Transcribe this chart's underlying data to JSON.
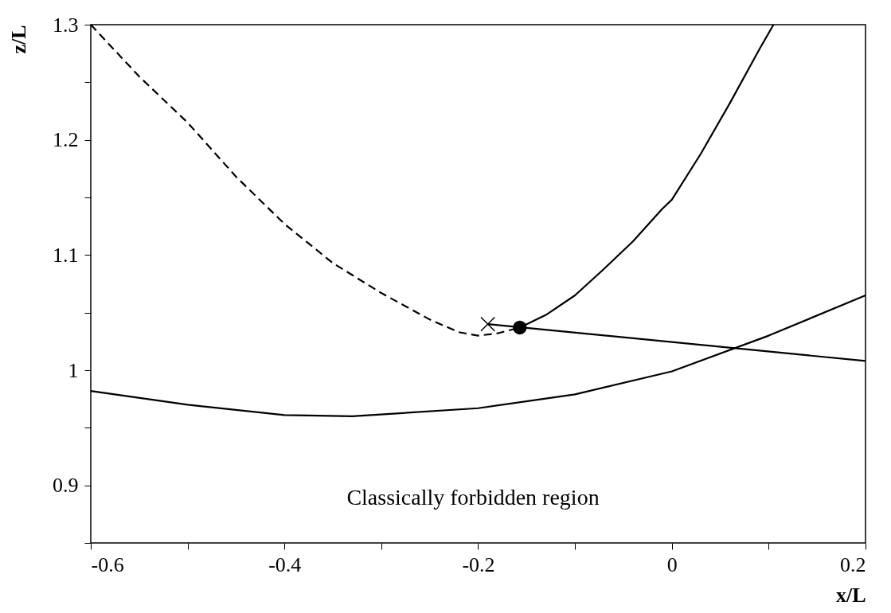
{
  "chart_data": {
    "type": "line",
    "xlabel": "x/L",
    "ylabel": "z/L",
    "xlim": [
      -0.6,
      0.2
    ],
    "ylim": [
      0.85,
      1.3
    ],
    "xticks": [
      -0.6,
      {
        "value": -0.5,
        "label": null
      },
      -0.4,
      {
        "value": -0.3,
        "label": null
      },
      -0.2,
      {
        "value": -0.1,
        "label": null
      },
      0,
      {
        "value": 0.1,
        "label": null
      },
      0.2
    ],
    "yticks": [
      {
        "value": 0.85,
        "label": null
      },
      0.9,
      {
        "value": 0.95,
        "label": null
      },
      1,
      {
        "value": 1.05,
        "label": null
      },
      1.1,
      {
        "value": 1.15,
        "label": null
      },
      1.2,
      {
        "value": 1.25,
        "label": null
      },
      1.3
    ],
    "grid": false,
    "series": [
      {
        "line_style": "dashed",
        "color": "#000000",
        "x": [
          -0.6,
          -0.55,
          -0.5,
          -0.45,
          -0.4,
          -0.35,
          -0.3,
          -0.25,
          -0.22,
          -0.2,
          -0.18,
          -0.157
        ],
        "values": [
          1.3,
          1.255,
          1.215,
          1.168,
          1.127,
          1.093,
          1.067,
          1.044,
          1.033,
          1.03,
          1.032,
          1.037
        ]
      },
      {
        "line_style": "solid",
        "color": "#000000",
        "x": [
          -0.157,
          -0.13,
          -0.1,
          -0.07,
          -0.04,
          -0.01,
          0.0,
          0.03,
          0.06,
          0.09,
          0.105
        ],
        "values": [
          1.037,
          1.048,
          1.065,
          1.088,
          1.112,
          1.14,
          1.148,
          1.188,
          1.232,
          1.278,
          1.3
        ]
      },
      {
        "line_style": "solid",
        "color": "#000000",
        "x": [
          -0.19,
          0.2
        ],
        "values": [
          1.04,
          1.008
        ]
      },
      {
        "line_style": "solid",
        "color": "#000000",
        "x": [
          -0.6,
          -0.5,
          -0.4,
          -0.33,
          -0.2,
          -0.1,
          0.0,
          0.1,
          0.2
        ],
        "values": [
          0.982,
          0.97,
          0.961,
          0.96,
          0.967,
          0.979,
          0.999,
          1.03,
          1.065
        ]
      },
      {
        "type": "scatter",
        "marker": "cross",
        "color": "#000000",
        "x": [
          -0.19
        ],
        "values": [
          1.04
        ]
      },
      {
        "type": "scatter",
        "marker": "circle",
        "color": "#000000",
        "x": [
          -0.157
        ],
        "values": [
          1.037
        ]
      }
    ],
    "annotations": [
      "Classically forbidden region"
    ]
  }
}
